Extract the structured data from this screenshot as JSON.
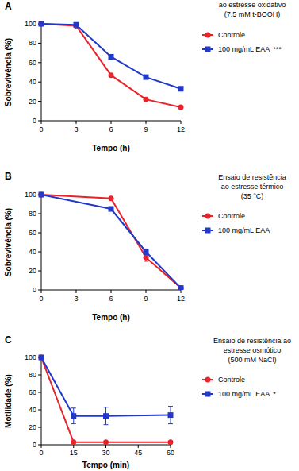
{
  "chart_data": [
    {
      "type": "line",
      "panel": "A",
      "title": "ao estresse oxidativo\n(7.5 mM t-BOOH)",
      "x_label": "Tempo (h)",
      "y_label": "Sobrevivência (%)",
      "x": [
        0,
        3,
        6,
        9,
        12
      ],
      "xlim": [
        0,
        12
      ],
      "xticks": [
        0,
        3,
        6,
        9,
        12
      ],
      "ylim": [
        0,
        100
      ],
      "yticks": [
        0,
        20,
        40,
        60,
        80,
        100
      ],
      "legend": "right",
      "significance": "***",
      "series": [
        {
          "name": "Controle",
          "color": "#e8232b",
          "marker": "circle",
          "values": [
            100,
            98,
            47,
            22,
            14
          ]
        },
        {
          "name": "100 mg/mL EAA",
          "color": "#2238c8",
          "marker": "square",
          "values": [
            100,
            99,
            66,
            45,
            33
          ]
        }
      ]
    },
    {
      "type": "line",
      "panel": "B",
      "title": "Ensaio de resistência\nao estresse térmico\n(35 °C)",
      "x_label": "Tempo (h)",
      "y_label": "Sobrevivência (%)",
      "x": [
        0,
        6,
        9,
        12
      ],
      "xlim": [
        0,
        12
      ],
      "xticks": [
        0,
        3,
        6,
        9,
        12
      ],
      "ylim": [
        0,
        100
      ],
      "yticks": [
        0,
        20,
        40,
        60,
        80,
        100
      ],
      "legend": "right",
      "series": [
        {
          "name": "Controle",
          "color": "#e8232b",
          "marker": "circle",
          "values": [
            100,
            96,
            34,
            2
          ],
          "errors": [
            0,
            0,
            4,
            0
          ]
        },
        {
          "name": "100 mg/mL EAA",
          "color": "#2238c8",
          "marker": "square",
          "values": [
            100,
            85,
            40,
            2
          ],
          "errors": [
            0,
            2,
            3,
            0
          ]
        }
      ]
    },
    {
      "type": "line",
      "panel": "C",
      "title": "Ensaio de resistência ao\nestresse osmótico\n(500 mM NaCl)",
      "x_label": "Tempo (min)",
      "y_label": "Motilidade (%)",
      "x": [
        0,
        15,
        30,
        60
      ],
      "xlim": [
        0,
        60
      ],
      "xticks": [
        0,
        15,
        30,
        45,
        60
      ],
      "ylim": [
        0,
        100
      ],
      "yticks": [
        0,
        20,
        40,
        60,
        80,
        100
      ],
      "legend": "right",
      "significance": "*",
      "series": [
        {
          "name": "Controle",
          "color": "#e8232b",
          "marker": "circle",
          "values": [
            100,
            3,
            3,
            3
          ],
          "errors": [
            0,
            0,
            0,
            0
          ]
        },
        {
          "name": "100 mg/mL EAA",
          "color": "#2238c8",
          "marker": "square",
          "values": [
            100,
            33,
            33,
            34
          ],
          "errors": [
            0,
            9,
            10,
            10
          ]
        }
      ]
    }
  ]
}
